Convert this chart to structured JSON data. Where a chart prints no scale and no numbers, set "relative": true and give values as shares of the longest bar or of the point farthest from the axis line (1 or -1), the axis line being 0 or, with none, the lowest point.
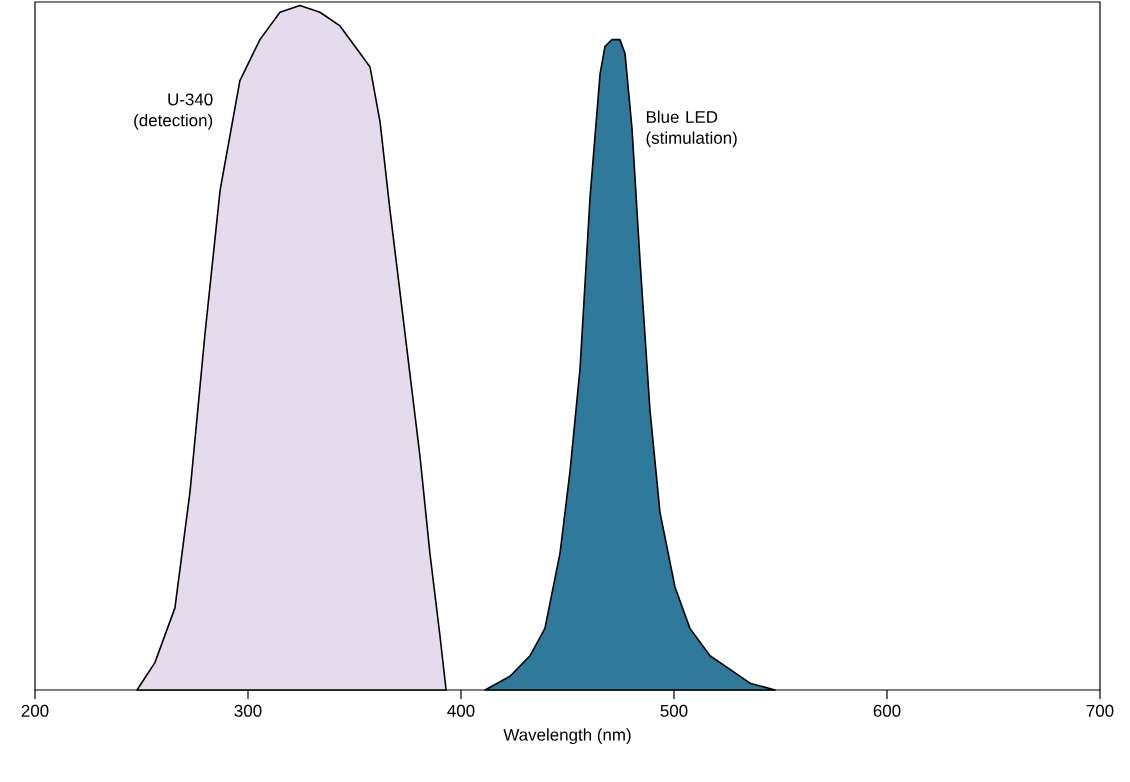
{
  "chart_data": {
    "type": "area",
    "relative": true,
    "xlabel": "Wavelength (nm)",
    "xlim": [
      200,
      700
    ],
    "xticks": [
      200,
      300,
      400,
      500,
      600,
      700
    ],
    "grid": false,
    "series": [
      {
        "name": "U-340 (detection)",
        "color": "#e4dcec",
        "x": [
          247.9,
          256.3,
          265.7,
          272.8,
          279.8,
          286.9,
          296.2,
          305.6,
          315.0,
          324.4,
          333.8,
          343.2,
          352.6,
          357.3,
          362.0,
          366.7,
          371.4,
          376.1,
          380.8,
          385.4,
          390.1,
          393.0
        ],
        "values": [
          0,
          0.04,
          0.12,
          0.29,
          0.52,
          0.73,
          0.89,
          0.95,
          0.99,
          1.0,
          0.99,
          0.97,
          0.93,
          0.91,
          0.83,
          0.7,
          0.58,
          0.46,
          0.34,
          0.2,
          0.08,
          0
        ]
      },
      {
        "name": "Blue LED (stimulation)",
        "color": "#2f7a9a",
        "x": [
          411.3,
          423.0,
          432.4,
          439.4,
          446.5,
          451.2,
          455.9,
          460.6,
          465.3,
          467.6,
          470.9,
          474.6,
          477.0,
          480.3,
          484.0,
          488.7,
          493.4,
          500.5,
          507.5,
          516.9,
          526.3,
          535.7,
          547.4
        ],
        "values": [
          0,
          0.02,
          0.05,
          0.09,
          0.2,
          0.32,
          0.47,
          0.72,
          0.9,
          0.94,
          0.95,
          0.95,
          0.93,
          0.82,
          0.63,
          0.41,
          0.26,
          0.15,
          0.09,
          0.05,
          0.03,
          0.01,
          0
        ]
      }
    ]
  }
}
